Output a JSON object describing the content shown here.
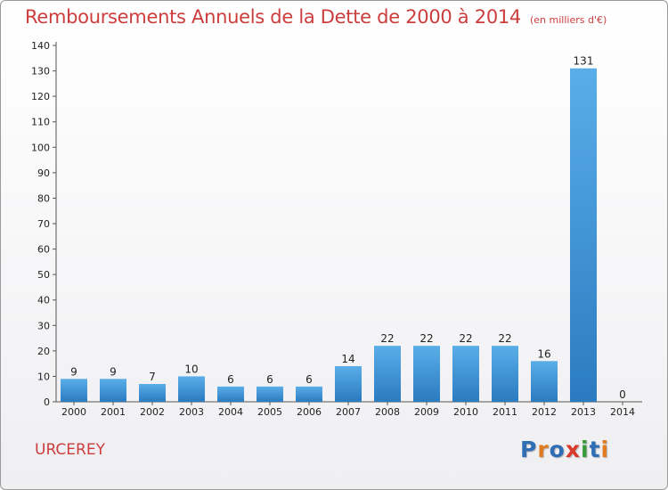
{
  "title": "Remboursements Annuels de la Dette de 2000 à 2014",
  "unit_note": "(en milliers d'€)",
  "town": "URCEREY",
  "logo": {
    "text": "Proxiti",
    "letters": [
      {
        "ch": "P",
        "color": "#2f6db5"
      },
      {
        "ch": "r",
        "color": "#e07b22"
      },
      {
        "ch": "o",
        "color": "#2f6db5"
      },
      {
        "ch": "x",
        "color": "#d93a2b"
      },
      {
        "ch": "i",
        "color": "#3a9a3a"
      },
      {
        "ch": "t",
        "color": "#2f6db5"
      },
      {
        "ch": "i",
        "color": "#e07b22"
      }
    ]
  },
  "colors": {
    "bar_top": "#5aaee8",
    "bar_bottom": "#2a7bc0",
    "title": "#cc3d3d",
    "grid": "#cccccc"
  },
  "chart_data": {
    "type": "bar",
    "categories": [
      "2000",
      "2001",
      "2002",
      "2003",
      "2004",
      "2005",
      "2006",
      "2007",
      "2008",
      "2009",
      "2010",
      "2011",
      "2012",
      "2013",
      "2014"
    ],
    "values": [
      9,
      9,
      7,
      10,
      6,
      6,
      6,
      14,
      22,
      22,
      22,
      22,
      16,
      131,
      0
    ],
    "ylim": [
      0,
      140
    ],
    "yticks": [
      0,
      10,
      20,
      30,
      40,
      50,
      60,
      70,
      80,
      90,
      100,
      110,
      120,
      130,
      140
    ],
    "grid": false
  }
}
